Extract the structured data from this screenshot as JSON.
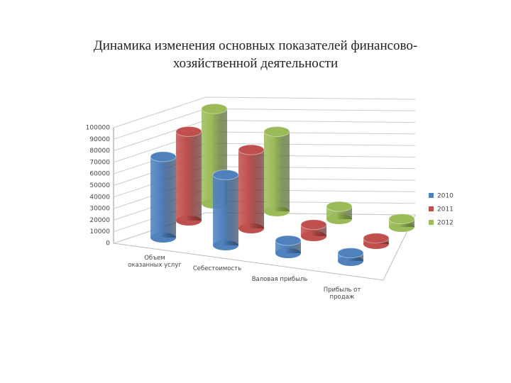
{
  "chart_data": {
    "type": "bar3d",
    "title": "Динамика изменения основных показателей финансово-хозяйственной деятельности",
    "categories": [
      "Объем оказанных услуг",
      "Себестоимость",
      "Валовая прибыль",
      "Прибыль от продаж"
    ],
    "series": [
      {
        "name": "2010",
        "color": "#4f81bd",
        "values": [
          70000,
          61000,
          11000,
          7000
        ]
      },
      {
        "name": "2011",
        "color": "#c0504d",
        "values": [
          77000,
          68000,
          10000,
          5000
        ]
      },
      {
        "name": "2012",
        "color": "#9bbb59",
        "values": [
          82000,
          69000,
          11000,
          7000
        ]
      }
    ],
    "ylim": [
      0,
      100000
    ],
    "yticks": [
      0,
      10000,
      20000,
      30000,
      40000,
      50000,
      60000,
      70000,
      80000,
      90000,
      100000
    ],
    "grid": true,
    "legend": "right"
  }
}
